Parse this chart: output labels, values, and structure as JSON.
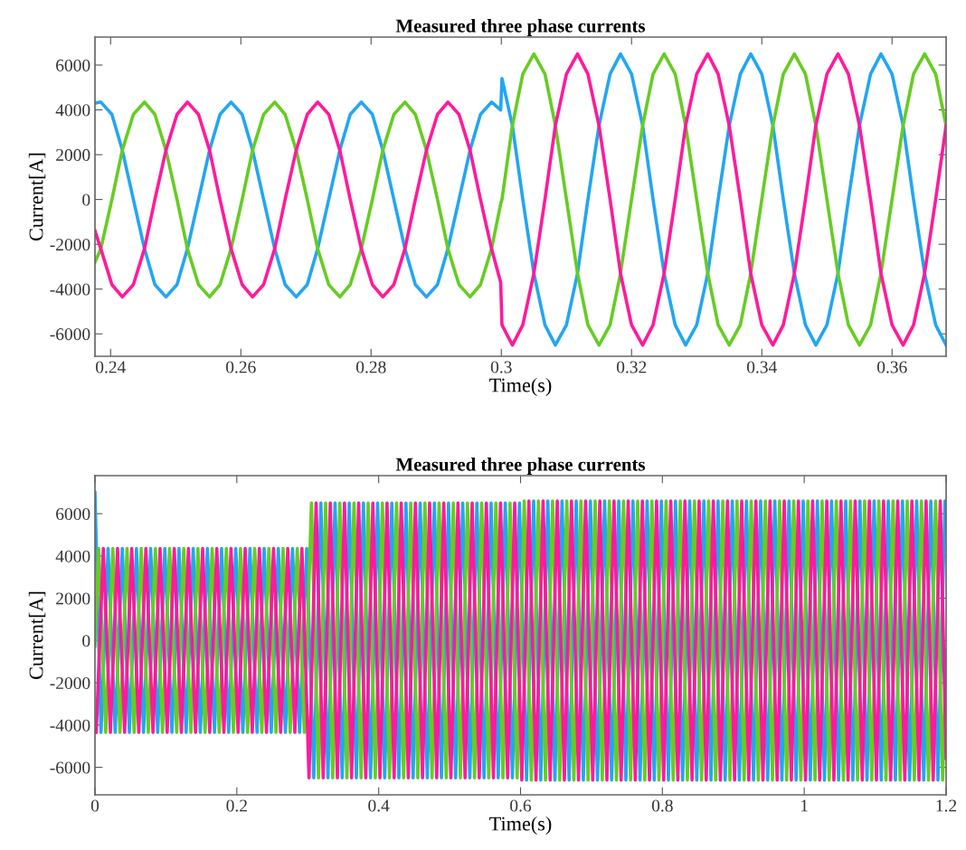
{
  "chart_data": [
    {
      "type": "line",
      "title": "Measured three phase currents",
      "xlabel": "Time(s)",
      "ylabel": "Current[A]",
      "xlim": [
        0.2376,
        0.3683
      ],
      "ylim": [
        -7000,
        7250
      ],
      "xticks": [
        0.24,
        0.26,
        0.28,
        0.3,
        0.32,
        0.34,
        0.36
      ],
      "yticks": [
        -6000,
        -4000,
        -2000,
        0,
        2000,
        4000,
        6000
      ],
      "grid": false,
      "legend": false,
      "marker": "none",
      "line_style": "solid",
      "x": [
        0.2376,
        0.2385,
        0.2402,
        0.2418,
        0.2435,
        0.2452,
        0.2468,
        0.2485,
        0.2502,
        0.2518,
        0.2535,
        0.2552,
        0.2568,
        0.2585,
        0.2602,
        0.2618,
        0.2635,
        0.2652,
        0.2668,
        0.2685,
        0.2702,
        0.2718,
        0.2735,
        0.2752,
        0.2768,
        0.2785,
        0.2802,
        0.2818,
        0.2835,
        0.2852,
        0.2868,
        0.2885,
        0.2902,
        0.2918,
        0.2935,
        0.2952,
        0.2968,
        0.2985,
        0.2999,
        0.3001,
        0.3017,
        0.3033,
        0.305,
        0.3067,
        0.3083,
        0.31,
        0.3117,
        0.3133,
        0.315,
        0.3167,
        0.3183,
        0.32,
        0.3217,
        0.3233,
        0.325,
        0.3267,
        0.3283,
        0.33,
        0.3317,
        0.3333,
        0.335,
        0.3367,
        0.3383,
        0.34,
        0.3417,
        0.3433,
        0.345,
        0.3467,
        0.3483,
        0.35,
        0.3517,
        0.3533,
        0.355,
        0.3567,
        0.3583,
        0.36,
        0.3617,
        0.3633,
        0.365,
        0.3667,
        0.3683
      ],
      "series": [
        {
          "color": "#22a6f2",
          "values": [
            4300,
            4350,
            3800,
            2200,
            0,
            -2200,
            -3800,
            -4350,
            -3800,
            -2200,
            0,
            2200,
            3800,
            4350,
            3800,
            2200,
            0,
            -2200,
            -3800,
            -4350,
            -3800,
            -2200,
            0,
            2200,
            3800,
            4350,
            3800,
            2200,
            0,
            -2200,
            -3800,
            -4350,
            -3800,
            -2200,
            0,
            2200,
            3800,
            4350,
            4000,
            5400,
            3300,
            0,
            -3300,
            -5600,
            -6500,
            -5600,
            -3300,
            0,
            3300,
            5600,
            6500,
            5600,
            3300,
            0,
            -3300,
            -5600,
            -6500,
            -5600,
            -3300,
            0,
            3300,
            5600,
            6500,
            5600,
            3300,
            0,
            -3300,
            -5600,
            -6500,
            -5600,
            -3300,
            0,
            3300,
            5600,
            6500,
            5600,
            3300,
            0,
            -3300,
            -5600,
            -6500
          ]
        },
        {
          "color": "#66cc22",
          "values": [
            -2800,
            -2200,
            0,
            2200,
            3800,
            4350,
            3800,
            2200,
            0,
            -2200,
            -3800,
            -4350,
            -3800,
            -2200,
            0,
            2200,
            3800,
            4350,
            3800,
            2200,
            0,
            -2200,
            -3800,
            -4350,
            -3800,
            -2200,
            0,
            2200,
            3800,
            4350,
            3800,
            2200,
            0,
            -2200,
            -3800,
            -4350,
            -3800,
            -2200,
            -200,
            0,
            3300,
            5600,
            6500,
            5600,
            3300,
            0,
            -3300,
            -5600,
            -6500,
            -5600,
            -3300,
            0,
            3300,
            5600,
            6500,
            5600,
            3300,
            0,
            -3300,
            -5600,
            -6500,
            -5600,
            -3300,
            0,
            3300,
            5600,
            6500,
            5600,
            3300,
            0,
            -3300,
            -5600,
            -6500,
            -5600,
            -3300,
            0,
            3300,
            5600,
            6500,
            5600,
            3300
          ]
        },
        {
          "color": "#ff1a9c",
          "values": [
            -1400,
            -2200,
            -3800,
            -4350,
            -3800,
            -2200,
            0,
            2200,
            3800,
            4350,
            3800,
            2200,
            0,
            -2200,
            -3800,
            -4350,
            -3800,
            -2200,
            0,
            2200,
            3800,
            4350,
            3800,
            2200,
            0,
            -2200,
            -3800,
            -4350,
            -3800,
            -2200,
            0,
            2200,
            3800,
            4350,
            3800,
            2200,
            0,
            -2200,
            -3700,
            -5600,
            -6500,
            -5600,
            -3300,
            0,
            3300,
            5600,
            6500,
            5600,
            3300,
            0,
            -3300,
            -5600,
            -6500,
            -5600,
            -3300,
            0,
            3300,
            5600,
            6500,
            5600,
            3300,
            0,
            -3300,
            -5600,
            -6500,
            -5600,
            -3300,
            0,
            3300,
            5600,
            6500,
            5600,
            3300,
            0,
            -3300,
            -5600,
            -6500,
            -5600,
            -3300,
            0,
            3300
          ]
        }
      ]
    },
    {
      "type": "line",
      "title": "Measured three phase currents",
      "xlabel": "Time(s)",
      "ylabel": "Current[A]",
      "xlim": [
        0,
        1.2
      ],
      "ylim": [
        -7300,
        7800
      ],
      "xticks": [
        0,
        0.2,
        0.4,
        0.6,
        0.8,
        1,
        1.2
      ],
      "yticks": [
        -6000,
        -4000,
        -2000,
        0,
        2000,
        4000,
        6000
      ],
      "grid": false,
      "legend": false,
      "marker": "none",
      "line_style": "solid",
      "series": [
        {
          "color": "#22a6f2",
          "x": [
            0,
            0.0085,
            0.0185,
            0.0285,
            0.0385,
            0.0485,
            0.0585,
            0.0685,
            0.0785,
            0.0885,
            0.0985,
            0.1085,
            0.1185,
            0.1285,
            0.1385,
            0.1485,
            0.1585,
            0.1685,
            0.1785,
            0.1885,
            0.1985,
            0.2085,
            0.2185,
            0.2285,
            0.2385,
            0.2485,
            0.2585,
            0.2685,
            0.2785,
            0.2885,
            0.2985,
            0.3085,
            0.3185,
            0.3285,
            0.3385,
            0.3485,
            0.3585,
            0.3685,
            0.3785,
            0.3885,
            0.3985,
            0.4085,
            0.4185,
            0.4285,
            0.4385,
            0.4485,
            0.4585,
            0.4685,
            0.4785,
            0.4885,
            0.4985,
            0.5085,
            0.5185,
            0.5285,
            0.5385,
            0.5485,
            0.5585,
            0.5685,
            0.5785,
            0.5885,
            0.5985,
            0.6085,
            0.6185,
            0.6285,
            0.6385,
            0.6485,
            0.6585,
            0.6685,
            0.6785,
            0.6885,
            0.6985,
            0.7085,
            0.7185,
            0.7285,
            0.7385,
            0.7485,
            0.7585,
            0.7685,
            0.7785,
            0.7885,
            0.7985,
            0.8085,
            0.8185,
            0.8285,
            0.8385,
            0.8485,
            0.8585,
            0.8685,
            0.8785,
            0.8885,
            0.8985,
            0.9085,
            0.9185,
            0.9285,
            0.9385,
            0.9485,
            0.9585,
            0.9685,
            0.9785,
            0.9885,
            0.9985,
            1.0085,
            1.0185,
            1.0285,
            1.0385,
            1.0485,
            1.0585,
            1.0685,
            1.0785,
            1.0885,
            1.0985,
            1.1085,
            1.1185,
            1.1285,
            1.1385,
            1.1485,
            1.1585,
            1.1685,
            1.1785,
            1.1885,
            1.1985,
            1.2
          ],
          "values": [
            7000,
            -4350,
            4350,
            -4350,
            4350,
            -4350,
            4350,
            -4350,
            4350,
            -4350,
            4350,
            -4350,
            4350,
            -4350,
            4350,
            -4350,
            4350,
            -4350,
            4350,
            -4350,
            4350,
            -4350,
            4350,
            -4350,
            4350,
            -4350,
            4350,
            -4350,
            4350,
            -4350,
            4350,
            -6500,
            6500,
            -6500,
            6500,
            -6500,
            6500,
            -6500,
            6500,
            -6500,
            6500,
            -6500,
            6500,
            -6500,
            6500,
            -6500,
            6500,
            -6500,
            6500,
            -6500,
            6500,
            -6500,
            6500,
            -6500,
            6500,
            -6500,
            6500,
            -6500,
            6500,
            -6500,
            6500,
            -6600,
            6600,
            -6600,
            6600,
            -6600,
            6600,
            -6600,
            6600,
            -6600,
            6600,
            -6600,
            6600,
            -6600,
            6600,
            -6600,
            6600,
            -6600,
            6600,
            -6600,
            6600,
            -6600,
            6600,
            -6600,
            6600,
            -6600,
            6600,
            -6600,
            6600,
            -6600,
            6600,
            -6600,
            6600,
            -6600,
            6600,
            -6600,
            6600,
            -6600,
            6600,
            -6600,
            6600,
            -6600,
            6600,
            -6600,
            6600,
            -6600,
            6600,
            -6600,
            6600,
            -6600,
            6600,
            -6600,
            6600,
            -6600,
            6600,
            -6600,
            6600,
            -6600,
            6600,
            -6600,
            6600,
            6400
          ]
        },
        {
          "color": "#66cc22",
          "x": [
            0,
            0.0052,
            0.0152,
            0.0252,
            0.0352,
            0.0452,
            0.0552,
            0.0652,
            0.0752,
            0.0852,
            0.0952,
            0.1052,
            0.1152,
            0.1252,
            0.1352,
            0.1452,
            0.1552,
            0.1652,
            0.1752,
            0.1852,
            0.1952,
            0.2052,
            0.2152,
            0.2252,
            0.2352,
            0.2452,
            0.2552,
            0.2652,
            0.2752,
            0.2852,
            0.2952,
            0.3052,
            0.3152,
            0.3252,
            0.3352,
            0.3452,
            0.3552,
            0.3652,
            0.3752,
            0.3852,
            0.3952,
            0.4052,
            0.4152,
            0.4252,
            0.4352,
            0.4452,
            0.4552,
            0.4652,
            0.4752,
            0.4852,
            0.4952,
            0.5052,
            0.5152,
            0.5252,
            0.5352,
            0.5452,
            0.5552,
            0.5652,
            0.5752,
            0.5852,
            0.5952,
            0.6052,
            0.6152,
            0.6252,
            0.6352,
            0.6452,
            0.6552,
            0.6652,
            0.6752,
            0.6852,
            0.6952,
            0.7052,
            0.7152,
            0.7252,
            0.7352,
            0.7452,
            0.7552,
            0.7652,
            0.7752,
            0.7852,
            0.7952,
            0.8052,
            0.8152,
            0.8252,
            0.8352,
            0.8452,
            0.8552,
            0.8652,
            0.8752,
            0.8852,
            0.8952,
            0.9052,
            0.9152,
            0.9252,
            0.9352,
            0.9452,
            0.9552,
            0.9652,
            0.9752,
            0.9852,
            0.9952,
            1.0052,
            1.0152,
            1.0252,
            1.0352,
            1.0452,
            1.0552,
            1.0652,
            1.0752,
            1.0852,
            1.0952,
            1.1052,
            1.1152,
            1.1252,
            1.1352,
            1.1452,
            1.1552,
            1.1652,
            1.1752,
            1.1852,
            1.1952,
            1.2
          ],
          "values": [
            -270,
            4350,
            -4350,
            4350,
            -4350,
            4350,
            -4350,
            4350,
            -4350,
            4350,
            -4350,
            4350,
            -4350,
            4350,
            -4350,
            4350,
            -4350,
            4350,
            -4350,
            4350,
            -4350,
            4350,
            -4350,
            4350,
            -4350,
            4350,
            -4350,
            4350,
            -4350,
            4350,
            -4350,
            6500,
            -6500,
            6500,
            -6500,
            6500,
            -6500,
            6500,
            -6500,
            6500,
            -6500,
            6500,
            -6500,
            6500,
            -6500,
            6500,
            -6500,
            6500,
            -6500,
            6500,
            -6500,
            6500,
            -6500,
            6500,
            -6500,
            6500,
            -6500,
            6500,
            -6500,
            6500,
            -6500,
            6600,
            -6600,
            6600,
            -6600,
            6600,
            -6600,
            6600,
            -6600,
            6600,
            -6600,
            6600,
            -6600,
            6600,
            -6600,
            6600,
            -6600,
            6600,
            -6600,
            6600,
            -6600,
            6600,
            -6600,
            6600,
            -6600,
            6600,
            -6600,
            6600,
            -6600,
            6600,
            -6600,
            6600,
            -6600,
            6600,
            -6600,
            6600,
            -6600,
            6600,
            -6600,
            6600,
            -6600,
            6600,
            -6600,
            6600,
            -6600,
            6600,
            -6600,
            6600,
            -6600,
            6600,
            -6600,
            6600,
            -6600,
            6600,
            -6600,
            6600,
            -6600,
            6600,
            -6600,
            6600,
            -6600,
            -460
          ]
        },
        {
          "color": "#ff1a9c",
          "x": [
            0,
            0.0018,
            0.0118,
            0.0218,
            0.0318,
            0.0418,
            0.0518,
            0.0618,
            0.0718,
            0.0818,
            0.0918,
            0.1018,
            0.1118,
            0.1218,
            0.1318,
            0.1418,
            0.1518,
            0.1618,
            0.1718,
            0.1818,
            0.1918,
            0.2018,
            0.2118,
            0.2218,
            0.2318,
            0.2418,
            0.2518,
            0.2618,
            0.2718,
            0.2818,
            0.2918,
            0.3018,
            0.3118,
            0.3218,
            0.3318,
            0.3418,
            0.3518,
            0.3618,
            0.3718,
            0.3818,
            0.3918,
            0.4018,
            0.4118,
            0.4218,
            0.4318,
            0.4418,
            0.4518,
            0.4618,
            0.4718,
            0.4818,
            0.4918,
            0.5018,
            0.5118,
            0.5218,
            0.5318,
            0.5418,
            0.5518,
            0.5618,
            0.5718,
            0.5818,
            0.5918,
            0.6018,
            0.6118,
            0.6218,
            0.6318,
            0.6418,
            0.6518,
            0.6618,
            0.6718,
            0.6818,
            0.6918,
            0.7018,
            0.7118,
            0.7218,
            0.7318,
            0.7418,
            0.7518,
            0.7618,
            0.7718,
            0.7818,
            0.7918,
            0.8018,
            0.8118,
            0.8218,
            0.8318,
            0.8418,
            0.8518,
            0.8618,
            0.8718,
            0.8818,
            0.8918,
            0.9018,
            0.9118,
            0.9218,
            0.9318,
            0.9418,
            0.9518,
            0.9618,
            0.9718,
            0.9818,
            0.9918,
            1.0018,
            1.0118,
            1.0218,
            1.0318,
            1.0418,
            1.0518,
            1.0618,
            1.0718,
            1.0818,
            1.0918,
            1.1018,
            1.1118,
            1.1218,
            1.1318,
            1.1418,
            1.1518,
            1.1618,
            1.1718,
            1.1818,
            1.1918,
            1.2
          ],
          "values": [
            -4200,
            -4350,
            4350,
            -4350,
            4350,
            -4350,
            4350,
            -4350,
            4350,
            -4350,
            4350,
            -4350,
            4350,
            -4350,
            4350,
            -4350,
            4350,
            -4350,
            4350,
            -4350,
            4350,
            -4350,
            4350,
            -4350,
            4350,
            -4350,
            4350,
            -4350,
            4350,
            -4350,
            4350,
            -6500,
            6500,
            -6500,
            6500,
            -6500,
            6500,
            -6500,
            6500,
            -6500,
            6500,
            -6500,
            6500,
            -6500,
            6500,
            -6500,
            6500,
            -6500,
            6500,
            -6500,
            6500,
            -6500,
            6500,
            -6500,
            6500,
            -6500,
            6500,
            -6500,
            6500,
            -6500,
            6500,
            -6600,
            6600,
            -6600,
            6600,
            -6600,
            6600,
            -6600,
            6600,
            -6600,
            6600,
            -6600,
            6600,
            -6600,
            6600,
            -6600,
            6600,
            -6600,
            6600,
            -6600,
            6600,
            -6600,
            6600,
            -6600,
            6600,
            -6600,
            6600,
            -6600,
            6600,
            -6600,
            6600,
            -6600,
            6600,
            -6600,
            6600,
            -6600,
            6600,
            -6600,
            6600,
            -6600,
            6600,
            -6600,
            6600,
            -6600,
            6600,
            -6600,
            6600,
            -6600,
            6600,
            -6600,
            6600,
            -6600,
            6600,
            -6600,
            6600,
            -6600,
            6600,
            -6600,
            6600,
            -6600,
            6600,
            -5570
          ]
        }
      ]
    }
  ]
}
